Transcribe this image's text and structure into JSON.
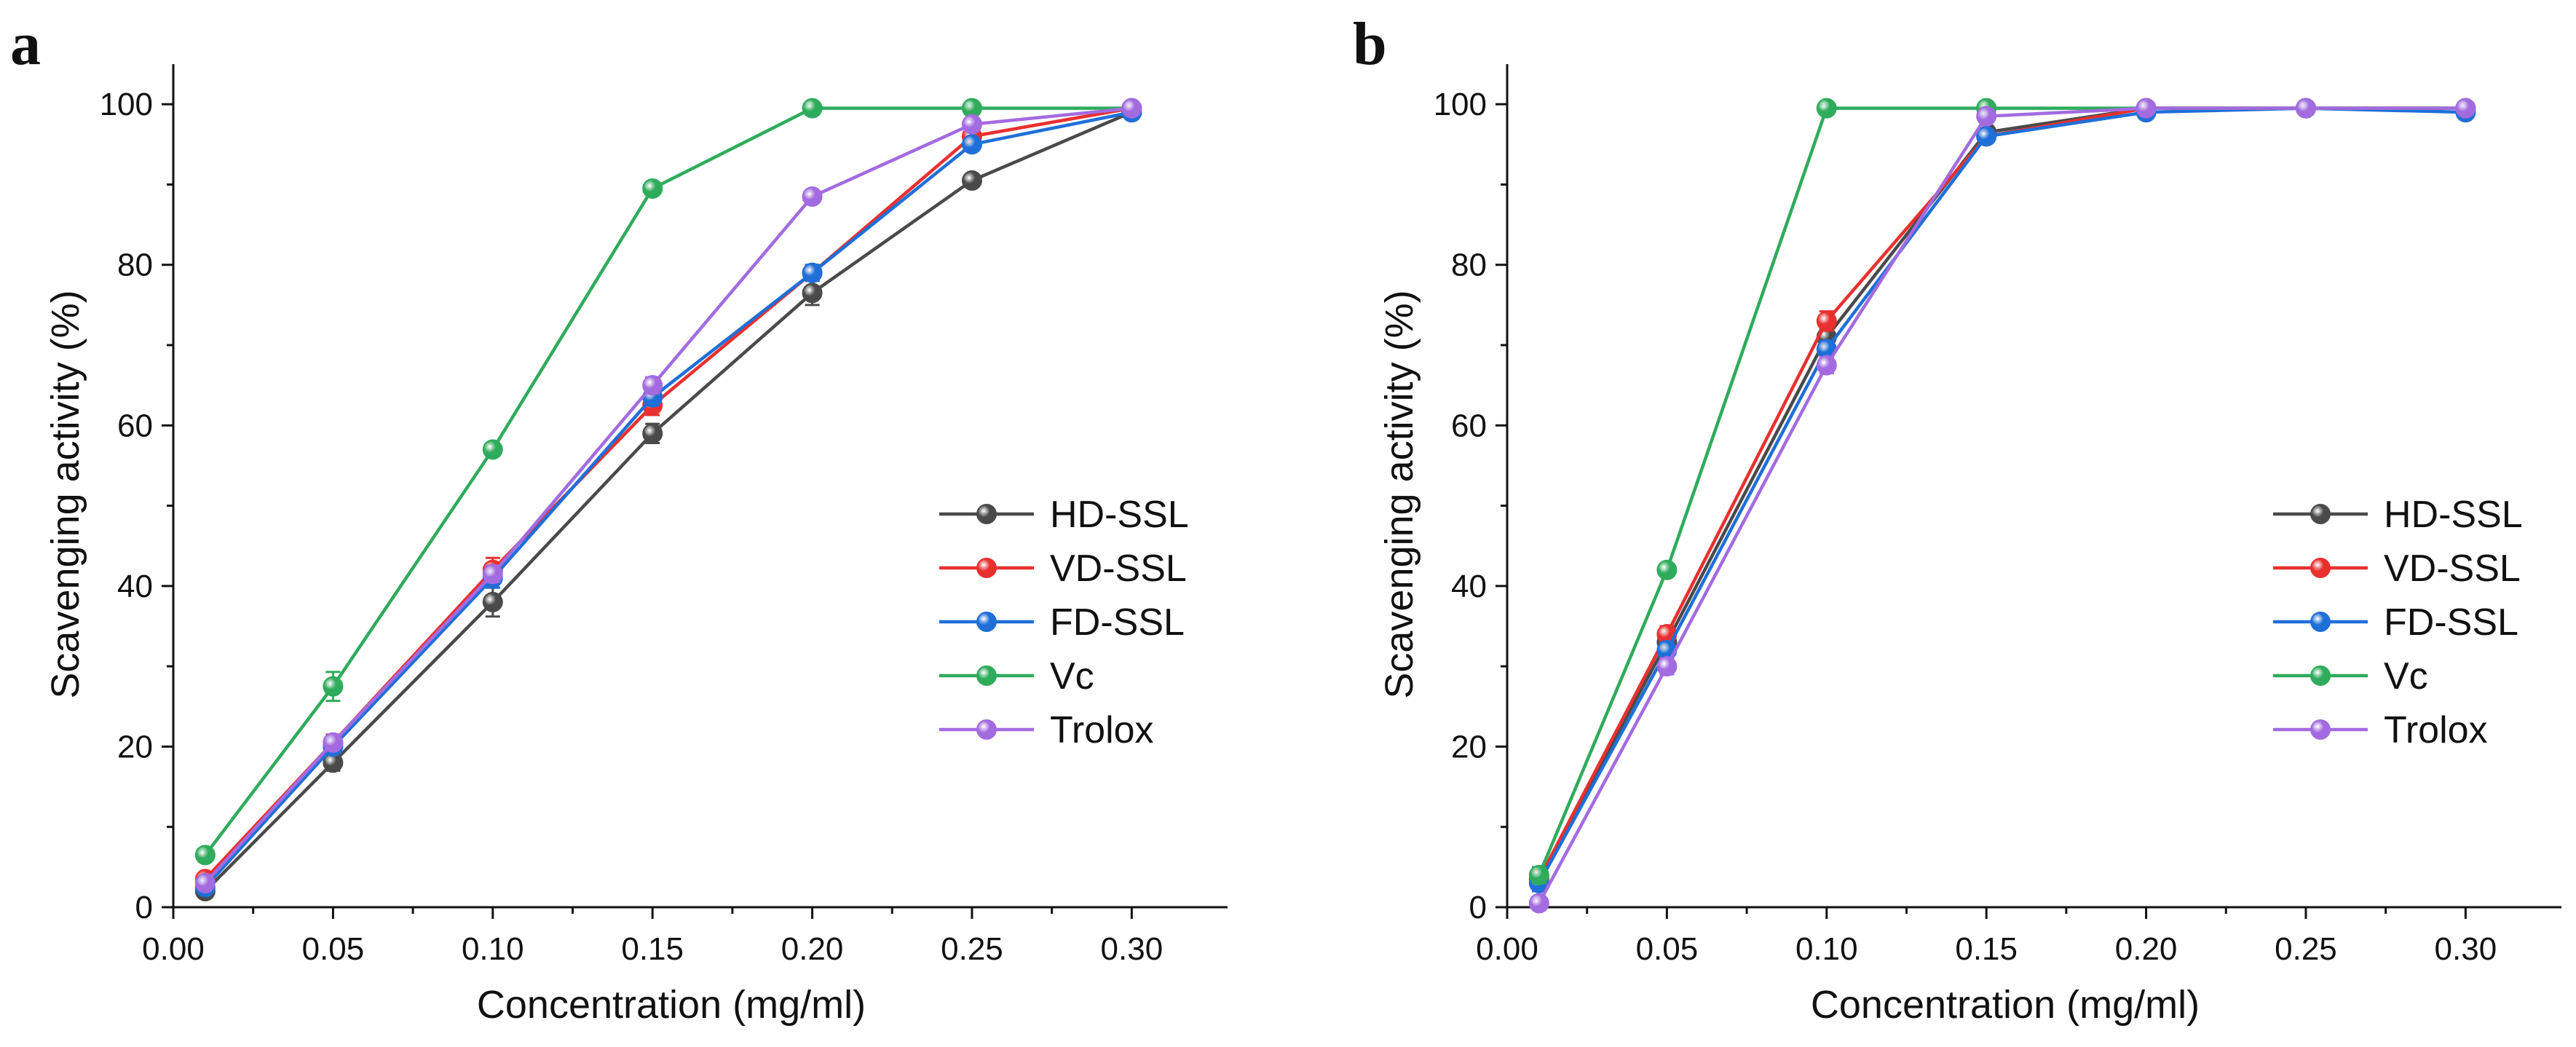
{
  "colors": {
    "HD-SSL": "#4a4a4a",
    "VD-SSL": "#e8302f",
    "FD-SSL": "#1f6fd8",
    "Vc": "#2fab5c",
    "Trolox": "#a36be0"
  },
  "chart_data": [
    {
      "type": "line",
      "panel": "a",
      "xlabel": "Concentration (mg/ml)",
      "ylabel": "Scavenging activity (%)",
      "xlim": [
        0,
        0.33
      ],
      "ylim": [
        0,
        105
      ],
      "xticks": [
        "0.00",
        "0.05",
        "0.10",
        "0.15",
        "0.20",
        "0.25",
        "0.30"
      ],
      "yticks": [
        "0",
        "20",
        "40",
        "60",
        "80",
        "100"
      ],
      "x": [
        0.01,
        0.05,
        0.1,
        0.15,
        0.2,
        0.25,
        0.3
      ],
      "legend_position": "right",
      "series": [
        {
          "name": "HD-SSL",
          "values": [
            2.0,
            18.0,
            38.0,
            59.0,
            76.5,
            90.5,
            99.0
          ],
          "errors": [
            0.8,
            1.0,
            1.8,
            1.2,
            1.5,
            0.8,
            0.5
          ]
        },
        {
          "name": "VD-SSL",
          "values": [
            3.5,
            20.5,
            42.0,
            62.5,
            79.0,
            96.0,
            99.5
          ],
          "errors": [
            0.8,
            1.0,
            1.5,
            1.2,
            1.0,
            1.0,
            0.5
          ]
        },
        {
          "name": "FD-SSL",
          "values": [
            2.5,
            20.0,
            41.0,
            63.5,
            79.0,
            95.0,
            99.0
          ],
          "errors": [
            0.8,
            0.8,
            1.2,
            1.0,
            1.0,
            0.8,
            0.5
          ]
        },
        {
          "name": "Vc",
          "values": [
            6.5,
            27.5,
            57.0,
            89.5,
            99.5,
            99.5,
            99.5
          ],
          "errors": [
            0.6,
            1.8,
            0.8,
            0.8,
            0.4,
            0.4,
            0.4
          ]
        },
        {
          "name": "Trolox",
          "values": [
            3.0,
            20.5,
            41.5,
            65.0,
            88.5,
            97.5,
            99.5
          ],
          "errors": [
            0.6,
            0.8,
            1.0,
            1.0,
            0.6,
            0.6,
            0.4
          ]
        }
      ]
    },
    {
      "type": "line",
      "panel": "b",
      "xlabel": "Concentration (mg/ml)",
      "ylabel": "Scavenging activity (%)",
      "xlim": [
        0,
        0.33
      ],
      "ylim": [
        0,
        105
      ],
      "xticks": [
        "0.00",
        "0.05",
        "0.10",
        "0.15",
        "0.20",
        "0.25",
        "0.30"
      ],
      "yticks": [
        "0",
        "20",
        "40",
        "60",
        "80",
        "100"
      ],
      "x": [
        0.01,
        0.05,
        0.1,
        0.15,
        0.2,
        0.25,
        0.3
      ],
      "legend_position": "right",
      "series": [
        {
          "name": "HD-SSL",
          "values": [
            3.5,
            33.0,
            71.0,
            96.5,
            99.5,
            99.5,
            99.5
          ],
          "errors": [
            1.0,
            1.0,
            1.0,
            0.6,
            0.4,
            0.4,
            0.4
          ]
        },
        {
          "name": "VD-SSL",
          "values": [
            3.5,
            34.0,
            73.0,
            96.0,
            99.5,
            99.5,
            99.5
          ],
          "errors": [
            1.0,
            1.0,
            1.2,
            0.6,
            0.4,
            0.4,
            0.4
          ]
        },
        {
          "name": "FD-SSL",
          "values": [
            3.0,
            32.0,
            69.5,
            96.0,
            99.0,
            99.5,
            99.0
          ],
          "errors": [
            1.0,
            1.0,
            1.0,
            0.6,
            0.4,
            0.4,
            0.4
          ]
        },
        {
          "name": "Vc",
          "values": [
            4.0,
            42.0,
            99.5,
            99.5,
            99.5,
            99.5,
            99.5
          ],
          "errors": [
            1.0,
            0.8,
            0.4,
            0.4,
            0.4,
            0.4,
            0.4
          ]
        },
        {
          "name": "Trolox",
          "values": [
            0.5,
            30.0,
            67.5,
            98.5,
            99.5,
            99.5,
            99.5
          ],
          "errors": [
            0.5,
            1.0,
            1.0,
            0.6,
            0.4,
            0.4,
            0.4
          ]
        }
      ]
    }
  ]
}
